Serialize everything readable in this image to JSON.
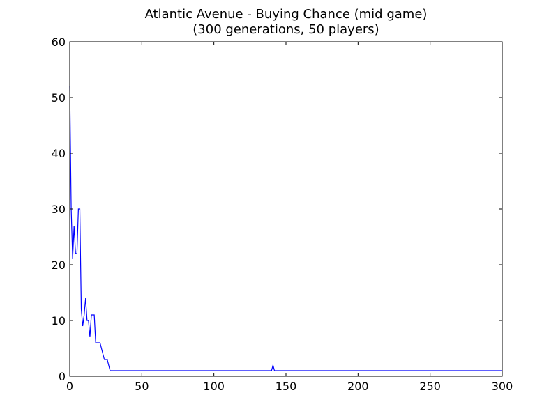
{
  "chart_data": {
    "type": "line",
    "title": "Atlantic Avenue - Buying Chance (mid game)",
    "subtitle": "(300 generations, 50 players)",
    "xlabel": "",
    "ylabel": "",
    "xlim": [
      0,
      300
    ],
    "ylim": [
      0,
      60
    ],
    "xticks": [
      0,
      50,
      100,
      150,
      200,
      250,
      300
    ],
    "yticks": [
      0,
      10,
      20,
      30,
      40,
      50,
      60
    ],
    "grid": false,
    "series": [
      {
        "color": "#0000ff",
        "x": [
          0,
          1,
          2,
          3,
          4,
          5,
          6,
          7,
          8,
          9,
          10,
          11,
          12,
          13,
          14,
          15,
          16,
          17,
          18,
          19,
          20,
          21,
          22,
          23,
          24,
          25,
          26,
          27,
          28,
          140,
          141,
          142,
          300
        ],
        "y": [
          52,
          30,
          21,
          27,
          22,
          22,
          30,
          30,
          12,
          9,
          11,
          14,
          10,
          10,
          7,
          11,
          11,
          11,
          6,
          6,
          6,
          6,
          5,
          4,
          3,
          3,
          3,
          2,
          1,
          1,
          2,
          1,
          1
        ]
      }
    ]
  }
}
